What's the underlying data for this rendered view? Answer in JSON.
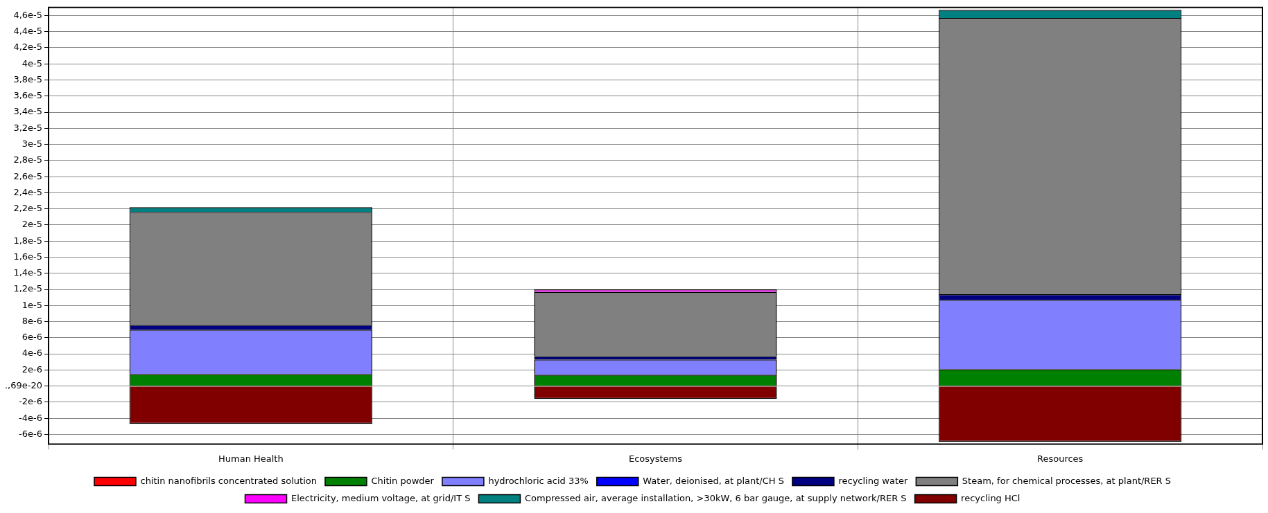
{
  "chart_data": {
    "type": "bar",
    "stacked": true,
    "categories": [
      "Human Health",
      "Ecosystems",
      "Resources"
    ],
    "series": [
      {
        "name": "chitin nanofibrils concentrated solution",
        "color": "#ff0000",
        "values": [
          null,
          null,
          null
        ]
      },
      {
        "name": "Chitin powder",
        "color": "#008000",
        "values": [
          1.5e-06,
          1.4e-06,
          2.1e-06
        ]
      },
      {
        "name": "hydrochloric acid 33%",
        "color": "#8080ff",
        "values": [
          5.5e-06,
          1.9e-06,
          8.6e-06
        ]
      },
      {
        "name": "Water, deionised, at plant/CH S",
        "color": "#0000ff",
        "values": [
          null,
          null,
          null
        ]
      },
      {
        "name": "recycling water",
        "color": "#000080",
        "values": [
          6e-07,
          4e-07,
          7e-07
        ]
      },
      {
        "name": "Steam, for chemical processes, at plant/RER S",
        "color": "#808080",
        "values": [
          1.4e-05,
          8e-06,
          3.43e-05
        ]
      },
      {
        "name": "Electricity, medium voltage, at grid/IT S",
        "color": "#ff00ff",
        "values": [
          null,
          3e-07,
          null
        ]
      },
      {
        "name": "Compressed air, average installation, >30kW, 6 bar gauge, at supply network/RER S",
        "color": "#008080",
        "values": [
          6e-07,
          null,
          1e-06
        ]
      },
      {
        "name": "recycling HCl",
        "color": "#800000",
        "values": [
          -4.7e-06,
          -1.6e-06,
          -6.9e-06
        ]
      }
    ],
    "ylim": [
      -7.2e-06,
      4.7e-05
    ],
    "yticks": [
      {
        "value": -6e-06,
        "label": "-6e-6"
      },
      {
        "value": -4e-06,
        "label": "-4e-6"
      },
      {
        "value": -2e-06,
        "label": "-2e-6"
      },
      {
        "value": 0,
        "label": ".,69e-20"
      },
      {
        "value": 2e-06,
        "label": "2e-6"
      },
      {
        "value": 4e-06,
        "label": "4e-6"
      },
      {
        "value": 6e-06,
        "label": "6e-6"
      },
      {
        "value": 8e-06,
        "label": "8e-6"
      },
      {
        "value": 1e-05,
        "label": "1e-5"
      },
      {
        "value": 1.2e-05,
        "label": "1,2e-5"
      },
      {
        "value": 1.4e-05,
        "label": "1,4e-5"
      },
      {
        "value": 1.6e-05,
        "label": "1,6e-5"
      },
      {
        "value": 1.8e-05,
        "label": "1,8e-5"
      },
      {
        "value": 2e-05,
        "label": "2e-5"
      },
      {
        "value": 2.2e-05,
        "label": "2,2e-5"
      },
      {
        "value": 2.4e-05,
        "label": "2,4e-5"
      },
      {
        "value": 2.6e-05,
        "label": "2,6e-5"
      },
      {
        "value": 2.8e-05,
        "label": "2,8e-5"
      },
      {
        "value": 3e-05,
        "label": "3e-5"
      },
      {
        "value": 3.2e-05,
        "label": "3,2e-5"
      },
      {
        "value": 3.4e-05,
        "label": "3,4e-5"
      },
      {
        "value": 3.6e-05,
        "label": "3,6e-5"
      },
      {
        "value": 3.8e-05,
        "label": "3,8e-5"
      },
      {
        "value": 4e-05,
        "label": "4e-5"
      },
      {
        "value": 4.2e-05,
        "label": "4,2e-5"
      },
      {
        "value": 4.4e-05,
        "label": "4,4e-5"
      },
      {
        "value": 4.6e-05,
        "label": "4,6e-5"
      }
    ],
    "grid": true,
    "legend": "bottom"
  }
}
